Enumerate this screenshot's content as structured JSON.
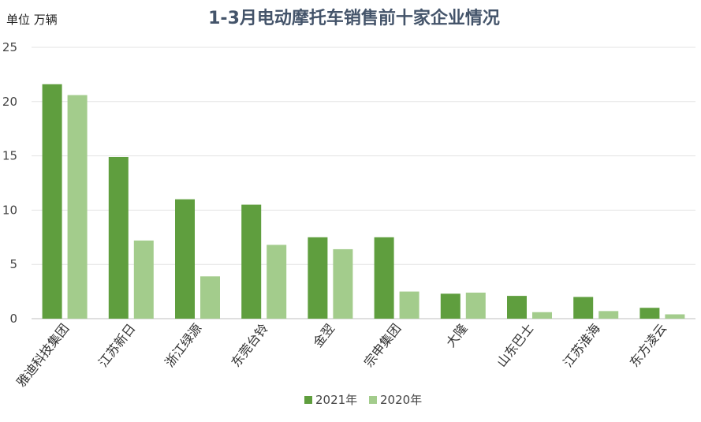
{
  "chart_data": {
    "type": "bar",
    "title": "1-3月电动摩托车销售前十家企业情况",
    "unit_label": "单位 万辆",
    "categories": [
      "雅迪科技集团",
      "江苏新日",
      "浙江绿源",
      "东莞台铃",
      "金翌",
      "宗申集团",
      "大隆",
      "山东巴士",
      "江苏淮海",
      "东方凌云"
    ],
    "series": [
      {
        "name": "2021年",
        "color": "#5f9e3e",
        "values": [
          21.6,
          14.9,
          11.0,
          10.5,
          7.5,
          7.5,
          2.3,
          2.1,
          2.0,
          1.0
        ]
      },
      {
        "name": "2020年",
        "color": "#a3cc8c",
        "values": [
          20.6,
          7.2,
          3.9,
          6.8,
          6.4,
          2.5,
          2.4,
          0.6,
          0.7,
          0.4
        ]
      }
    ],
    "ylim": [
      0,
      25
    ],
    "yticks": [
      "0",
      "5",
      "10",
      "15",
      "20",
      "25"
    ],
    "grid": true,
    "legend_position": "bottom"
  }
}
